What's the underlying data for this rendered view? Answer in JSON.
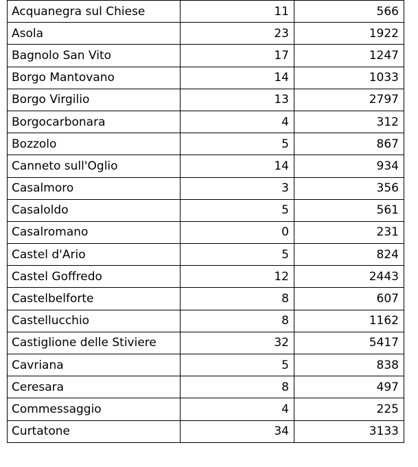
{
  "table": {
    "rows": [
      {
        "name": "Acquanegra sul Chiese",
        "a": "11",
        "b": "566"
      },
      {
        "name": "Asola",
        "a": "23",
        "b": "1922"
      },
      {
        "name": "Bagnolo San Vito",
        "a": "17",
        "b": "1247"
      },
      {
        "name": "Borgo Mantovano",
        "a": "14",
        "b": "1033"
      },
      {
        "name": "Borgo Virgilio",
        "a": "13",
        "b": "2797"
      },
      {
        "name": "Borgocarbonara",
        "a": "4",
        "b": "312"
      },
      {
        "name": "Bozzolo",
        "a": "5",
        "b": "867"
      },
      {
        "name": "Canneto sull'Oglio",
        "a": "14",
        "b": "934"
      },
      {
        "name": "Casalmoro",
        "a": "3",
        "b": "356"
      },
      {
        "name": "Casaloldo",
        "a": "5",
        "b": "561"
      },
      {
        "name": "Casalromano",
        "a": "0",
        "b": "231"
      },
      {
        "name": "Castel d'Ario",
        "a": "5",
        "b": "824"
      },
      {
        "name": "Castel Goffredo",
        "a": "12",
        "b": "2443"
      },
      {
        "name": "Castelbelforte",
        "a": "8",
        "b": "607"
      },
      {
        "name": "Castellucchio",
        "a": "8",
        "b": "1162"
      },
      {
        "name": "Castiglione delle Stiviere",
        "a": "32",
        "b": "5417"
      },
      {
        "name": "Cavriana",
        "a": "5",
        "b": "838"
      },
      {
        "name": "Ceresara",
        "a": "8",
        "b": "497"
      },
      {
        "name": "Commessaggio",
        "a": "4",
        "b": "225"
      },
      {
        "name": "Curtatone",
        "a": "34",
        "b": "3133"
      }
    ]
  }
}
